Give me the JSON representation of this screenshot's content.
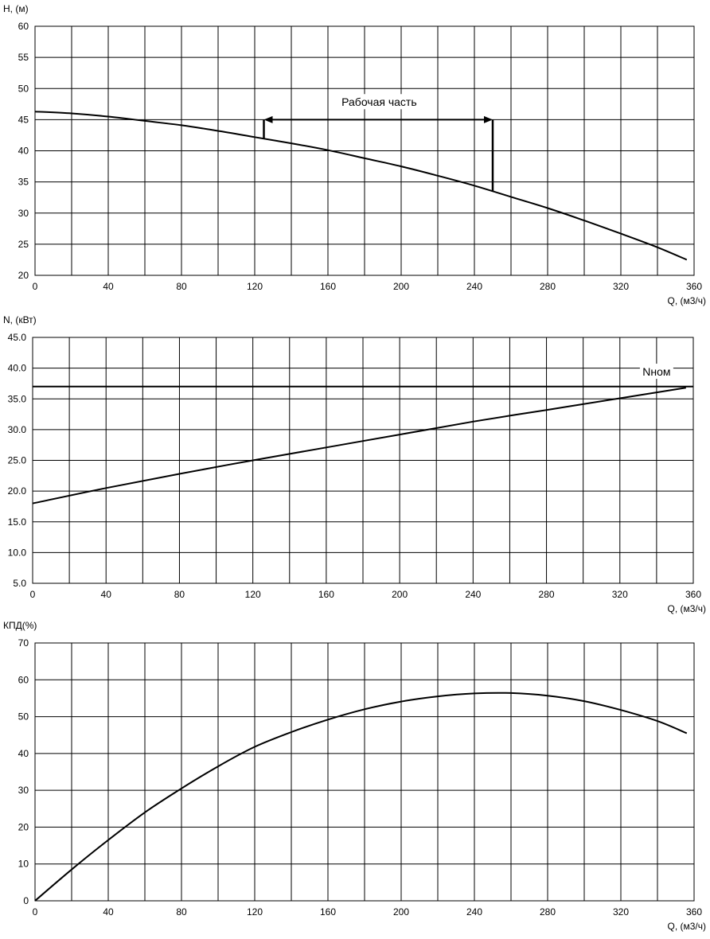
{
  "chart_data": [
    {
      "type": "line",
      "ylabel": "H, (м)",
      "xlabel": "Q, (м3/ч)",
      "xlim": [
        0,
        360
      ],
      "ylim": [
        20,
        60
      ],
      "x_ticks": [
        0,
        40,
        80,
        120,
        160,
        200,
        240,
        280,
        320,
        360
      ],
      "x_tick_labels": [
        "0",
        "40",
        "80",
        "120",
        "160",
        "200",
        "240",
        "280",
        "320",
        "360"
      ],
      "y_ticks": [
        20,
        25,
        30,
        35,
        40,
        45,
        50,
        55,
        60
      ],
      "y_tick_labels": [
        "20",
        "25",
        "30",
        "35",
        "40",
        "45",
        "50",
        "55",
        "60"
      ],
      "grid": true,
      "series": [
        {
          "x": [
            0,
            20,
            40,
            60,
            80,
            100,
            120,
            140,
            160,
            180,
            200,
            220,
            240,
            260,
            280,
            300,
            320,
            340,
            356
          ],
          "values": [
            46.3,
            46.0,
            45.5,
            44.8,
            44.1,
            43.2,
            42.2,
            41.2,
            40.1,
            38.8,
            37.5,
            36.0,
            34.4,
            32.6,
            30.8,
            28.8,
            26.7,
            24.5,
            22.5
          ]
        }
      ],
      "annotations": [
        {
          "text": "Рабочая часть",
          "x": 188,
          "y": 47.7
        }
      ],
      "working_range": {
        "q_start": 125,
        "q_end": 250,
        "h_arrow": 45
      }
    },
    {
      "type": "line",
      "ylabel": "N, (кВт)",
      "xlabel": "Q, (м3/ч)",
      "xlim": [
        0,
        360
      ],
      "ylim": [
        5,
        45
      ],
      "x_ticks": [
        0,
        40,
        80,
        120,
        160,
        200,
        240,
        280,
        320,
        360
      ],
      "x_tick_labels": [
        "0",
        "40",
        "80",
        "120",
        "160",
        "200",
        "240",
        "280",
        "320",
        "360"
      ],
      "y_ticks": [
        5,
        10,
        15,
        20,
        25,
        30,
        35,
        40,
        45
      ],
      "y_tick_labels": [
        "5.0",
        "10.0",
        "15.0",
        "20.0",
        "25.0",
        "30.0",
        "35.0",
        "40.0",
        "45.0"
      ],
      "grid": true,
      "series": [
        {
          "x": [
            0,
            40,
            80,
            120,
            160,
            200,
            240,
            280,
            320,
            356
          ],
          "values": [
            18.0,
            20.5,
            22.8,
            25.0,
            27.1,
            29.2,
            31.3,
            33.2,
            35.1,
            36.8
          ]
        }
      ],
      "reference_line": {
        "label": "Nном",
        "value": 37
      },
      "annotations": [
        {
          "text": "Nном",
          "x": 340,
          "y": 39.3
        }
      ]
    },
    {
      "type": "line",
      "ylabel": "КПД(%)",
      "xlabel": "Q, (м3/ч)",
      "xlim": [
        0,
        360
      ],
      "ylim": [
        0,
        70
      ],
      "x_ticks": [
        0,
        40,
        80,
        120,
        160,
        200,
        240,
        280,
        320,
        360
      ],
      "x_tick_labels": [
        "0",
        "40",
        "80",
        "120",
        "160",
        "200",
        "240",
        "280",
        "320",
        "360"
      ],
      "y_ticks": [
        0,
        10,
        20,
        30,
        40,
        50,
        60,
        70
      ],
      "y_tick_labels": [
        "0",
        "10",
        "20",
        "30",
        "40",
        "50",
        "60",
        "70"
      ],
      "grid": true,
      "series": [
        {
          "x": [
            0,
            20,
            40,
            60,
            80,
            100,
            120,
            140,
            160,
            180,
            200,
            220,
            240,
            260,
            280,
            300,
            320,
            340,
            356
          ],
          "values": [
            0,
            8.5,
            16.5,
            24.0,
            30.5,
            36.5,
            41.8,
            45.8,
            49.2,
            52.0,
            54.1,
            55.5,
            56.3,
            56.4,
            55.7,
            54.2,
            51.8,
            48.8,
            45.5
          ]
        }
      ]
    }
  ]
}
